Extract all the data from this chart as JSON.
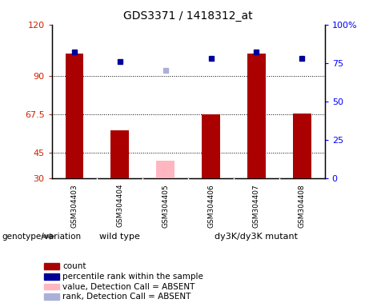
{
  "title": "GDS3371 / 1418312_at",
  "samples": [
    "GSM304403",
    "GSM304404",
    "GSM304405",
    "GSM304406",
    "GSM304407",
    "GSM304408"
  ],
  "count_values": [
    103,
    58,
    null,
    67.5,
    103,
    68
  ],
  "count_absent": [
    null,
    null,
    40,
    null,
    null,
    null
  ],
  "percentile_values": [
    82,
    76,
    null,
    78,
    82,
    78
  ],
  "percentile_absent": [
    null,
    null,
    70,
    null,
    null,
    null
  ],
  "ylim_left": [
    30,
    120
  ],
  "ylim_right": [
    0,
    100
  ],
  "yticks_left": [
    30,
    45,
    67.5,
    90,
    120
  ],
  "yticks_right": [
    0,
    25,
    50,
    75,
    100
  ],
  "ytick_labels_left": [
    "30",
    "45",
    "67.5",
    "90",
    "120"
  ],
  "ytick_labels_right": [
    "0",
    "25",
    "50",
    "75",
    "100%"
  ],
  "groups": [
    {
      "label": "wild type",
      "indices": [
        0,
        1,
        2
      ]
    },
    {
      "label": "dy3K/dy3K mutant",
      "indices": [
        3,
        4,
        5
      ]
    }
  ],
  "group_label_prefix": "genotype/variation",
  "bar_color_present": "#aa0000",
  "bar_color_absent": "#ffb6c1",
  "dot_color_present": "#000099",
  "dot_color_absent": "#aab0d8",
  "plot_bg_color": "#ffffff",
  "group_color": "#90ee90",
  "sample_box_color": "#d3d3d3",
  "legend_items": [
    {
      "label": "count",
      "color": "#aa0000"
    },
    {
      "label": "percentile rank within the sample",
      "color": "#000099"
    },
    {
      "label": "value, Detection Call = ABSENT",
      "color": "#ffb6c1"
    },
    {
      "label": "rank, Detection Call = ABSENT",
      "color": "#aab0d8"
    }
  ]
}
